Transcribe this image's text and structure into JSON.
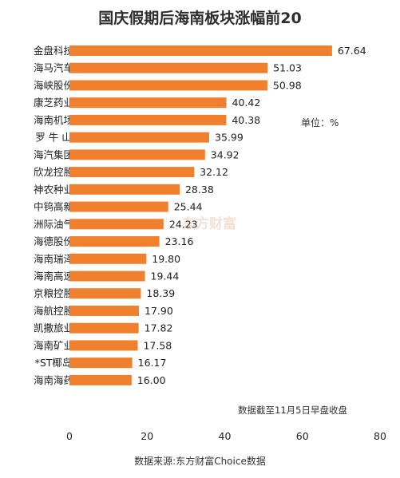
{
  "chart_data": {
    "type": "bar",
    "orientation": "horizontal",
    "title": "国庆假期后海南板块涨幅前20",
    "categories": [
      "金盘科技",
      "海马汽车",
      "海峡股份",
      "康芝药业",
      "海南机场",
      "罗 牛 山",
      "海汽集团",
      "欣龙控股",
      "神农种业",
      "中钨高新",
      "洲际油气",
      "海德股份",
      "海南瑞泽",
      "海南高速",
      "京粮控股",
      "海航控股",
      "凯撒旅业",
      "海南矿业",
      "*ST椰岛",
      "海南海药"
    ],
    "values": [
      67.64,
      51.03,
      50.98,
      40.42,
      40.38,
      35.99,
      34.92,
      32.12,
      28.38,
      25.44,
      24.23,
      23.16,
      19.8,
      19.44,
      18.39,
      17.9,
      17.82,
      17.58,
      16.17,
      16.0
    ],
    "value_labels": [
      "67.64",
      "51.03",
      "50.98",
      "40.42",
      "40.38",
      "35.99",
      "34.92",
      "32.12",
      "28.38",
      "25.44",
      "24.23",
      "23.16",
      "19.80",
      "19.44",
      "18.39",
      "17.90",
      "17.82",
      "17.58",
      "16.17",
      "16.00"
    ],
    "xlim": [
      0,
      80
    ],
    "xticks": [
      "0",
      "20",
      "40",
      "60",
      "80"
    ],
    "grid": false,
    "bar_color": "#F07F2E"
  },
  "unit_note": "单位：%",
  "date_note": "数据截至11月5日早盘收盘",
  "source_note": "数据来源:东方财富Choice数据",
  "watermark": "东方财富"
}
